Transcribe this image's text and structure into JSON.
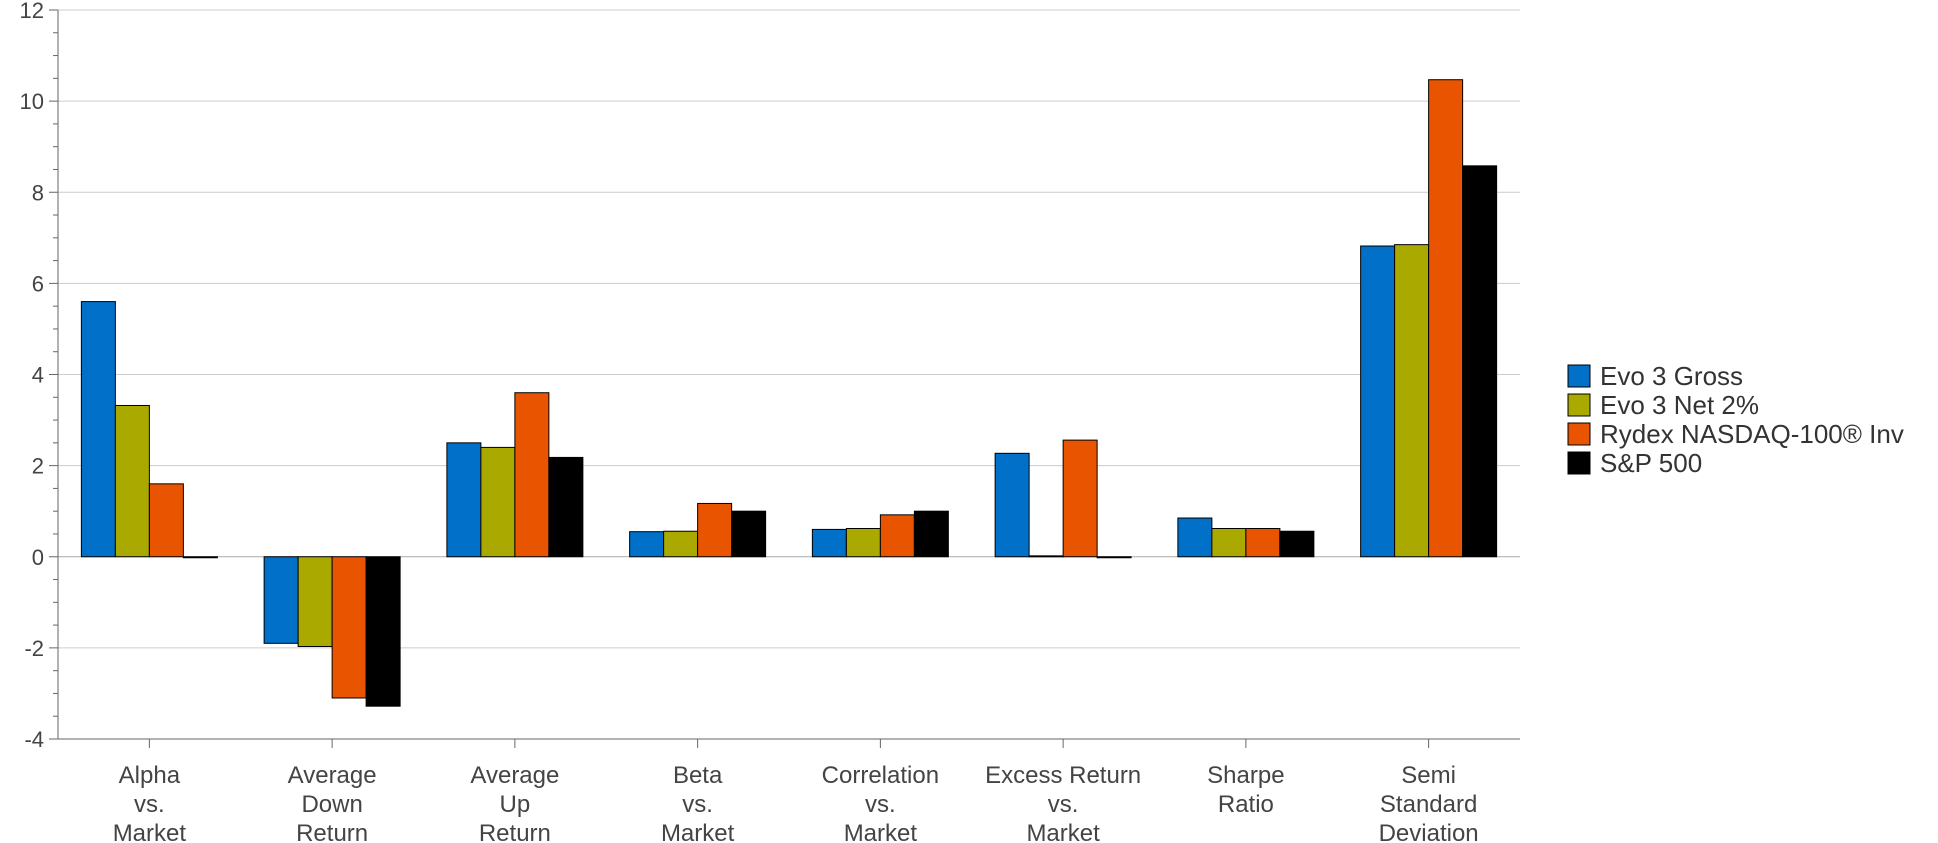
{
  "chart_data": {
    "type": "bar",
    "categories": [
      [
        "Alpha",
        "vs.",
        "Market"
      ],
      [
        "Average",
        "Down",
        "Return"
      ],
      [
        "Average",
        "Up",
        "Return"
      ],
      [
        "Beta",
        "vs.",
        "Market"
      ],
      [
        "Correlation",
        "vs.",
        "Market"
      ],
      [
        "Excess Return",
        "vs.",
        "Market"
      ],
      [
        "Sharpe",
        "Ratio"
      ],
      [
        "Semi",
        "Standard",
        "Deviation"
      ]
    ],
    "series": [
      {
        "name": "Evo 3 Gross",
        "color": "#0070c8",
        "values": [
          5.6,
          -1.9,
          2.5,
          0.55,
          0.6,
          2.27,
          0.85,
          6.82
        ]
      },
      {
        "name": "Evo 3 Net 2%",
        "color": "#a9a900",
        "values": [
          3.32,
          -1.97,
          2.4,
          0.56,
          0.62,
          0.02,
          0.62,
          6.85
        ]
      },
      {
        "name": "Rydex NASDAQ-100® Inv",
        "color": "#e85400",
        "values": [
          1.6,
          -3.1,
          3.6,
          1.17,
          0.92,
          2.56,
          0.62,
          10.47
        ]
      },
      {
        "name": "S&P 500",
        "color": "#000000",
        "values": [
          0.0,
          -3.28,
          2.18,
          1.0,
          1.0,
          0.0,
          0.56,
          8.58
        ]
      }
    ],
    "ylim": [
      -4,
      12
    ],
    "yticks": [
      -4,
      -2,
      0,
      2,
      4,
      6,
      8,
      10,
      12
    ],
    "grid": true,
    "legend": "right",
    "title": "",
    "xlabel": "",
    "ylabel": ""
  }
}
